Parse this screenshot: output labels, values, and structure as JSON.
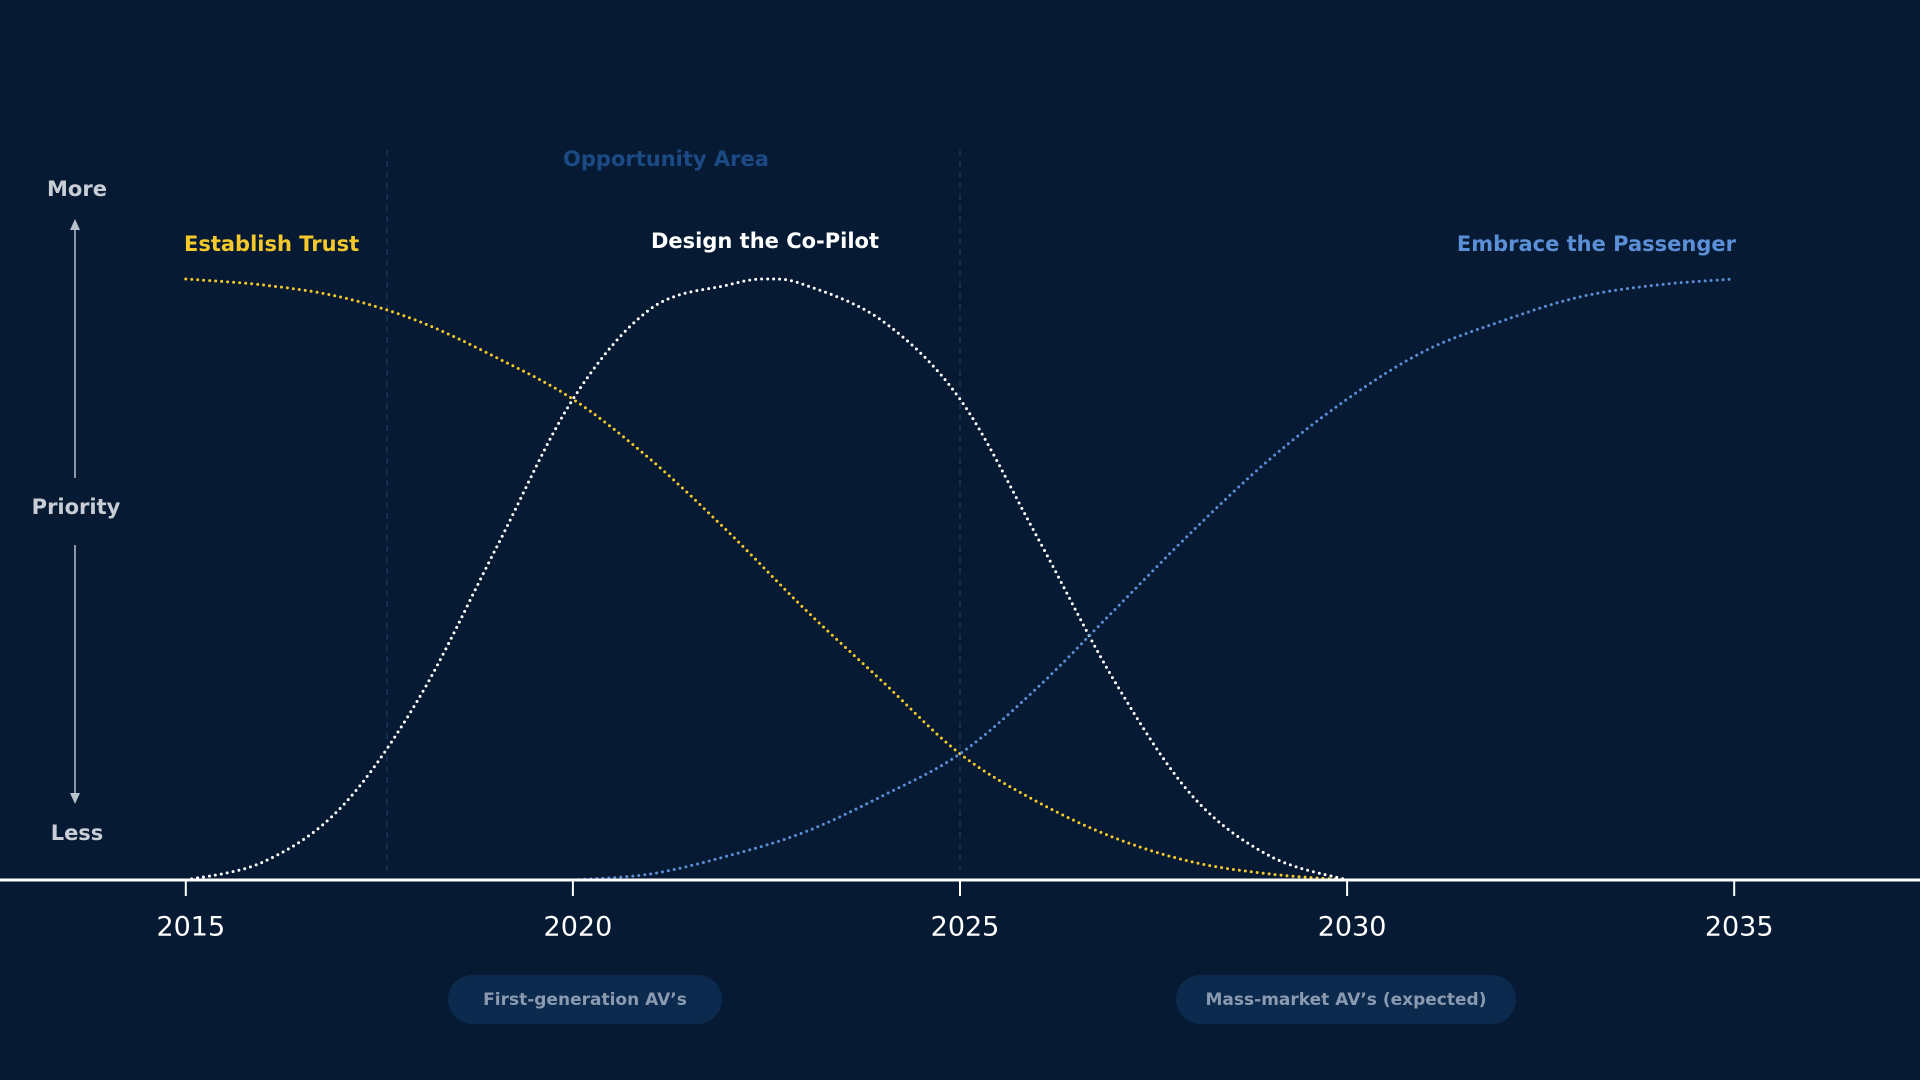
{
  "chart_data": {
    "type": "line",
    "xlim": [
      2012.6,
      2037.4
    ],
    "xticks": [
      2015,
      2020,
      2025,
      2030,
      2035
    ],
    "ylim": [
      0,
      1
    ],
    "y_axis_labels": {
      "top": "More",
      "middle": "Priority",
      "bottom": "Less"
    },
    "opportunity_area": {
      "label": "Opportunity Area",
      "range": [
        2017.6,
        2025
      ]
    },
    "series": [
      {
        "name": "Establish Trust",
        "color": "#f5c929",
        "x": [
          2015,
          2016,
          2017,
          2018,
          2019,
          2020,
          2021,
          2022,
          2023,
          2024,
          2025,
          2026,
          2027,
          2028,
          2029,
          2030
        ],
        "values": [
          1.0,
          0.99,
          0.97,
          0.93,
          0.87,
          0.8,
          0.7,
          0.58,
          0.45,
          0.33,
          0.21,
          0.13,
          0.07,
          0.03,
          0.01,
          0
        ]
      },
      {
        "name": "Design the Co-Pilot",
        "color": "#ffffff",
        "x": [
          2015,
          2016,
          2017,
          2018,
          2019,
          2020,
          2021,
          2022,
          2022.5,
          2023,
          2024,
          2025,
          2026,
          2027,
          2028,
          2029,
          2030
        ],
        "values": [
          0,
          0.03,
          0.12,
          0.3,
          0.55,
          0.8,
          0.95,
          0.99,
          1.0,
          0.99,
          0.93,
          0.8,
          0.57,
          0.33,
          0.14,
          0.04,
          0
        ]
      },
      {
        "name": "Embrace the Passenger",
        "color": "#5b8fd6",
        "x": [
          2020,
          2021,
          2022,
          2023,
          2024,
          2025,
          2026,
          2027,
          2028,
          2029,
          2030,
          2031,
          2032,
          2033,
          2034,
          2035
        ],
        "values": [
          0,
          0.01,
          0.04,
          0.08,
          0.14,
          0.21,
          0.32,
          0.45,
          0.58,
          0.7,
          0.8,
          0.88,
          0.93,
          0.97,
          0.99,
          1.0
        ]
      }
    ],
    "annotations": [
      "First-generation AV’s",
      "Mass-market AV’s (expected)"
    ]
  }
}
